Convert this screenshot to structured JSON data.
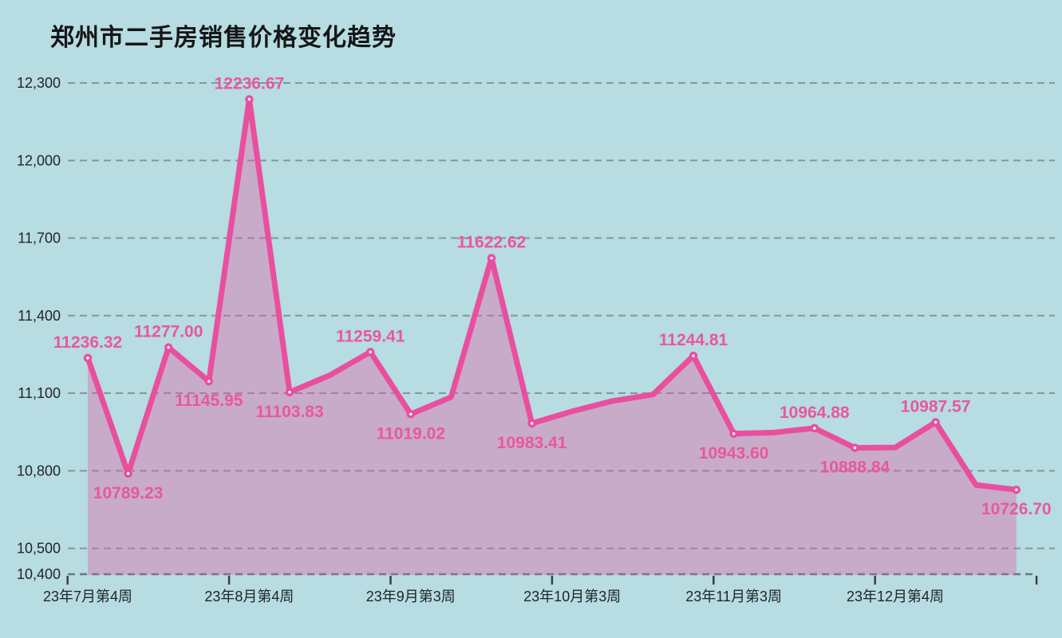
{
  "title": "郑州市二手房销售价格变化趋势",
  "colors": {
    "background": "#b7dce1",
    "line": "#e94f9e",
    "area_fill": "#e94f9e",
    "area_opacity": 0.35,
    "data_label": "#e8579f",
    "axis_text": "#222527",
    "gridline": "#83989c",
    "axis_line": "#68797d",
    "tick_mark": "#3a3f41",
    "marker_center": "#ffffff"
  },
  "chart_data": {
    "type": "area",
    "title": "郑州市二手房销售价格变化趋势",
    "xlabel": "",
    "ylabel": "",
    "ylim": [
      10400,
      12300
    ],
    "grid": "horizontal-dashed",
    "legend": "none",
    "y_ticks": [
      {
        "value": 12300,
        "label": "12,300"
      },
      {
        "value": 12000,
        "label": "12,000"
      },
      {
        "value": 11700,
        "label": "11,700"
      },
      {
        "value": 11400,
        "label": "11,400"
      },
      {
        "value": 11100,
        "label": "11,100"
      },
      {
        "value": 10800,
        "label": "10,800"
      },
      {
        "value": 10500,
        "label": "10,500"
      },
      {
        "value": 10400,
        "label": "10,400"
      }
    ],
    "x_tick_labels": [
      "23年7月第4周",
      "23年8月第4周",
      "23年9月第3周",
      "23年10月第3周",
      "23年11月第3周",
      "23年12月第4周"
    ],
    "x_label_weeks": [
      1,
      5,
      9,
      13,
      17,
      21
    ],
    "points": [
      {
        "week": 1,
        "value": 11236.32,
        "label": "11236.32",
        "label_pos": "above",
        "estimated": false
      },
      {
        "week": 2,
        "value": 10789.23,
        "label": "10789.23",
        "label_pos": "below",
        "estimated": false
      },
      {
        "week": 3,
        "value": 11277.0,
        "label": "11277.00",
        "label_pos": "above",
        "estimated": false
      },
      {
        "week": 4,
        "value": 11145.95,
        "label": "11145.95",
        "label_pos": "below",
        "estimated": false
      },
      {
        "week": 5,
        "value": 12236.67,
        "label": "12236.67",
        "label_pos": "above",
        "estimated": false
      },
      {
        "week": 6,
        "value": 11103.83,
        "label": "11103.83",
        "label_pos": "below",
        "estimated": false
      },
      {
        "week": 7,
        "value": 11170,
        "label": null,
        "label_pos": null,
        "estimated": true
      },
      {
        "week": 8,
        "value": 11259.41,
        "label": "11259.41",
        "label_pos": "above",
        "estimated": false
      },
      {
        "week": 9,
        "value": 11019.02,
        "label": "11019.02",
        "label_pos": "below",
        "estimated": false
      },
      {
        "week": 10,
        "value": 11085,
        "label": null,
        "label_pos": null,
        "estimated": true
      },
      {
        "week": 11,
        "value": 11622.62,
        "label": "11622.62",
        "label_pos": "above",
        "estimated": false
      },
      {
        "week": 12,
        "value": 10983.41,
        "label": "10983.41",
        "label_pos": "below",
        "estimated": false
      },
      {
        "week": 13,
        "value": 11030,
        "label": null,
        "label_pos": null,
        "estimated": true
      },
      {
        "week": 14,
        "value": 11070,
        "label": null,
        "label_pos": null,
        "estimated": true
      },
      {
        "week": 15,
        "value": 11095,
        "label": null,
        "label_pos": null,
        "estimated": true
      },
      {
        "week": 16,
        "value": 11244.81,
        "label": "11244.81",
        "label_pos": "above",
        "estimated": false
      },
      {
        "week": 17,
        "value": 10943.6,
        "label": "10943.60",
        "label_pos": "below",
        "estimated": false
      },
      {
        "week": 18,
        "value": 10948,
        "label": null,
        "label_pos": null,
        "estimated": true
      },
      {
        "week": 19,
        "value": 10964.88,
        "label": "10964.88",
        "label_pos": "above",
        "estimated": false
      },
      {
        "week": 20,
        "value": 10888.84,
        "label": "10888.84",
        "label_pos": "below",
        "estimated": false
      },
      {
        "week": 21,
        "value": 10890,
        "label": null,
        "label_pos": null,
        "estimated": true
      },
      {
        "week": 22,
        "value": 10987.57,
        "label": "10987.57",
        "label_pos": "above",
        "estimated": false
      },
      {
        "week": 23,
        "value": 10745,
        "label": null,
        "label_pos": null,
        "estimated": true
      },
      {
        "week": 24,
        "value": 10726.7,
        "label": "10726.70",
        "label_pos": "below",
        "estimated": false
      }
    ]
  }
}
